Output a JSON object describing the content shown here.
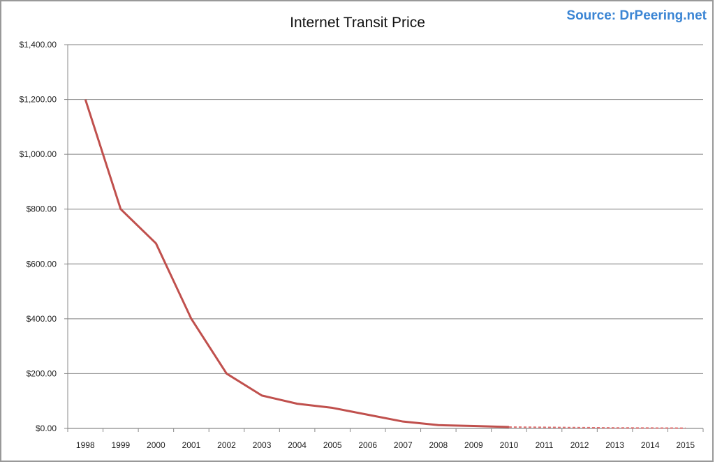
{
  "chart_data": {
    "type": "line",
    "title": "Internet Transit Price",
    "annotation": "Source: DrPeering.net",
    "xlabel": "",
    "ylabel": "",
    "categories": [
      "1998",
      "1999",
      "2000",
      "2001",
      "2002",
      "2003",
      "2004",
      "2005",
      "2006",
      "2007",
      "2008",
      "2009",
      "2010",
      "2011",
      "2012",
      "2013",
      "2014",
      "2015"
    ],
    "series": [
      {
        "style": "solid",
        "color": "#c0504d",
        "values": [
          1200,
          800,
          675,
          400,
          200,
          120,
          90,
          75,
          50,
          25,
          12,
          9,
          5,
          null,
          null,
          null,
          null,
          null
        ]
      },
      {
        "style": "dashed",
        "color": "#e07070",
        "values": [
          null,
          null,
          null,
          null,
          null,
          null,
          null,
          null,
          null,
          null,
          null,
          null,
          5,
          4,
          3,
          2,
          1.5,
          1
        ]
      }
    ],
    "ylim": [
      0,
      1400
    ],
    "yticks": [
      0,
      200,
      400,
      600,
      800,
      1000,
      1200,
      1400
    ],
    "ytick_labels": [
      "$0.00",
      "$200.00",
      "$400.00",
      "$600.00",
      "$800.00",
      "$1,000.00",
      "$1,200.00",
      "$1,400.00"
    ],
    "grid": "horizontal",
    "legend": "none"
  }
}
